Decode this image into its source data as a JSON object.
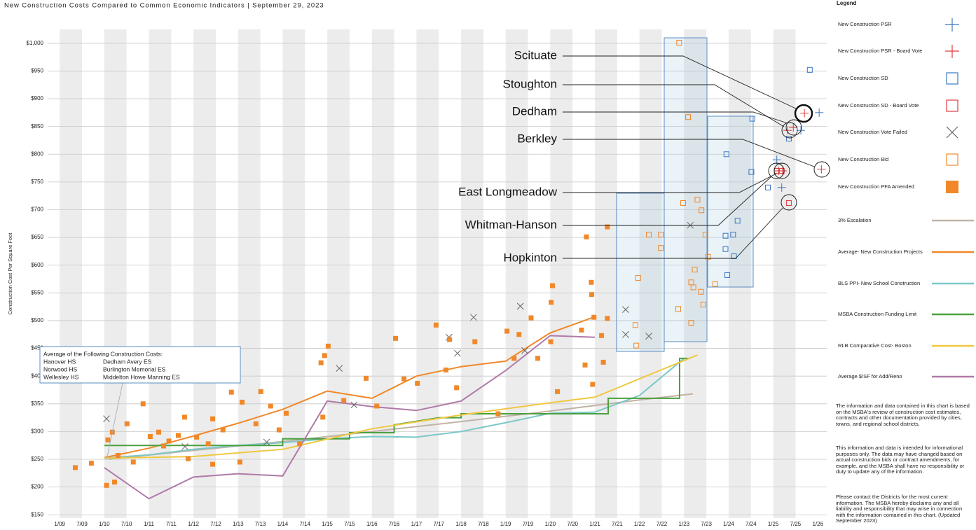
{
  "chart_data": {
    "type": "scatter",
    "title": "New Construction Costs Compared to Common Economic Indicators | September 29, 2023",
    "y_label": "Construction Cost Per Square Foot",
    "legend_title": "Legend",
    "grid": true,
    "xlim": [
      2008.73,
      2026.2
    ],
    "ylim": [
      144,
      1025
    ],
    "xticks": [
      {
        "value": 2009,
        "label": "1/09"
      },
      {
        "value": 2009.5,
        "label": "7/09"
      },
      {
        "value": 2010,
        "label": "1/10"
      },
      {
        "value": 2010.5,
        "label": "7/10"
      },
      {
        "value": 2011,
        "label": "1/11"
      },
      {
        "value": 2011.5,
        "label": "7/11"
      },
      {
        "value": 2012,
        "label": "1/12"
      },
      {
        "value": 2012.5,
        "label": "7/12"
      },
      {
        "value": 2013,
        "label": "1/13"
      },
      {
        "value": 2013.5,
        "label": "7/13"
      },
      {
        "value": 2014,
        "label": "1/14"
      },
      {
        "value": 2014.5,
        "label": "7/14"
      },
      {
        "value": 2015,
        "label": "1/15"
      },
      {
        "value": 2015.5,
        "label": "7/15"
      },
      {
        "value": 2016,
        "label": "1/16"
      },
      {
        "value": 2016.5,
        "label": "7/16"
      },
      {
        "value": 2017,
        "label": "1/17"
      },
      {
        "value": 2017.5,
        "label": "7/17"
      },
      {
        "value": 2018,
        "label": "1/18"
      },
      {
        "value": 2018.5,
        "label": "7/18"
      },
      {
        "value": 2019,
        "label": "1/19"
      },
      {
        "value": 2019.5,
        "label": "7/19"
      },
      {
        "value": 2020,
        "label": "1/20"
      },
      {
        "value": 2020.5,
        "label": "7/20"
      },
      {
        "value": 2021,
        "label": "1/21"
      },
      {
        "value": 2021.5,
        "label": "7/21"
      },
      {
        "value": 2022,
        "label": "1/22"
      },
      {
        "value": 2022.5,
        "label": "7/22"
      },
      {
        "value": 2023,
        "label": "1/23"
      },
      {
        "value": 2023.5,
        "label": "7/23"
      },
      {
        "value": 2024,
        "label": "1/24"
      },
      {
        "value": 2024.5,
        "label": "7/24"
      },
      {
        "value": 2025,
        "label": "1/25"
      },
      {
        "value": 2025.5,
        "label": "7/25"
      },
      {
        "value": 2026,
        "label": "1/26"
      }
    ],
    "yticks": [
      {
        "value": 150,
        "label": "$150"
      },
      {
        "value": 200,
        "label": "$200"
      },
      {
        "value": 250,
        "label": "$250"
      },
      {
        "value": 300,
        "label": "$300"
      },
      {
        "value": 350,
        "label": "$350"
      },
      {
        "value": 400,
        "label": "$400"
      },
      {
        "value": 450,
        "label": "$450"
      },
      {
        "value": 500,
        "label": "$500"
      },
      {
        "value": 550,
        "label": "$550"
      },
      {
        "value": 600,
        "label": "$600"
      },
      {
        "value": 650,
        "label": "$650"
      },
      {
        "value": 700,
        "label": "$700"
      },
      {
        "value": 750,
        "label": "$750"
      },
      {
        "value": 800,
        "label": "$800"
      },
      {
        "value": 850,
        "label": "$850"
      },
      {
        "value": 900,
        "label": "$900"
      },
      {
        "value": 950,
        "label": "$950"
      },
      {
        "value": 1000,
        "label": "$1,000"
      }
    ],
    "series": [
      {
        "name": "New Construction PSR",
        "color": "#3b78c4",
        "marker": "plus",
        "x": [
          2026.03,
          2025.08,
          2025.19,
          2025.62
        ],
        "values": [
          875,
          790,
          740,
          843
        ]
      },
      {
        "name": "New Construction PSR - Board Vote",
        "color": "#e03a3e",
        "marker": "plus",
        "x": [
          2025.7,
          2025.32,
          2025.45,
          2026.08,
          2025.12,
          2025.21
        ],
        "values": [
          874,
          843,
          848,
          773,
          770,
          770
        ]
      },
      {
        "name": "New Construction SD",
        "color": "#3b78c4",
        "marker": "square-open",
        "x": [
          2025.82,
          2025.35,
          2024.53,
          2023.95,
          2024.51,
          2024.2,
          2024.1,
          2023.93,
          2023.93,
          2024.12,
          2023.97,
          2024.88
        ],
        "values": [
          952,
          828,
          864,
          800,
          768,
          680,
          655,
          653,
          629,
          616,
          582,
          740
        ]
      },
      {
        "name": "New Construction SD - Board Vote",
        "color": "#e03a3e",
        "marker": "square-open",
        "x": [
          2025.35,
          2025.08,
          2025.19
        ],
        "values": [
          712,
          770,
          770
        ]
      },
      {
        "name": "New Construction Vote Failed",
        "color": "#666666",
        "marker": "x",
        "x": [
          2010.05,
          2011.81,
          2013.64,
          2015.27,
          2015.6,
          2017.73,
          2018.28,
          2019.33,
          2019.43,
          2021.69,
          2021.69,
          2022.21,
          2023.14,
          2017.92
        ],
        "values": [
          323,
          273,
          281,
          414,
          348,
          470,
          506,
          526,
          446,
          520,
          475,
          472,
          672,
          441
        ]
      },
      {
        "name": "New Construction Bid",
        "color": "#f0882a",
        "marker": "square-open",
        "x": [
          2022.89,
          2023.09,
          2021.97,
          2021.91,
          2021.93,
          2022.21,
          2022.48,
          2022.48,
          2022.98,
          2023.3,
          2023.39,
          2023.48,
          2023.54,
          2023.24,
          2023.16,
          2023.21,
          2023.38,
          2022.87,
          2023.43,
          2023.16,
          2023.7
        ],
        "values": [
          1001,
          867,
          577,
          492,
          455,
          655,
          655,
          631,
          712,
          718,
          699,
          655,
          615,
          592,
          569,
          560,
          552,
          521,
          529,
          496,
          566
        ]
      },
      {
        "name": "New Construction PFA Amended",
        "color": "#f0882a",
        "marker": "square",
        "x": [
          2009.35,
          2009.71,
          2010.05,
          2010.08,
          2010.18,
          2010.23,
          2010.31,
          2010.51,
          2010.65,
          2010.87,
          2011.03,
          2011.22,
          2011.33,
          2011.45,
          2011.66,
          2011.8,
          2011.88,
          2012.07,
          2012.33,
          2012.43,
          2012.43,
          2012.66,
          2012.85,
          2013.04,
          2013.09,
          2013.4,
          2013.51,
          2013.73,
          2013.92,
          2014.08,
          2014.38,
          2014.86,
          2014.94,
          2015.02,
          2014.9,
          2015.37,
          2015.87,
          2016.11,
          2016.53,
          2016.72,
          2017.02,
          2017.44,
          2017.66,
          2017.74,
          2017.9,
          2018.31,
          2018.83,
          2019.03,
          2019.19,
          2019.3,
          2019.57,
          2019.72,
          2020.05,
          2020.02,
          2020.01,
          2020.16,
          2020.7,
          2020.81,
          2020.78,
          2020.93,
          2020.95,
          2020.98,
          2021.15,
          2021.28,
          2021.28,
          2021.19,
          2020.92
        ],
        "values": [
          235,
          243,
          203,
          285,
          299,
          209,
          257,
          314,
          245,
          350,
          291,
          299,
          274,
          283,
          293,
          326,
          251,
          290,
          278,
          323,
          241,
          303,
          371,
          245,
          353,
          314,
          372,
          346,
          303,
          333,
          278,
          424,
          437,
          454,
          326,
          356,
          396,
          346,
          468,
          395,
          387,
          492,
          411,
          466,
          379,
          462,
          332,
          481,
          432,
          475,
          505,
          432,
          563,
          533,
          462,
          372,
          483,
          651,
          420,
          547,
          385,
          506,
          473,
          504,
          669,
          425,
          569
        ]
      },
      {
        "name": "3% Escalation",
        "color": "#c2b3a6",
        "marker": "line",
        "x": [
          2010.1,
          2012,
          2014,
          2016,
          2018,
          2020,
          2022,
          2023.2
        ],
        "values": [
          250,
          266,
          282,
          300,
          318,
          337,
          357,
          368
        ]
      },
      {
        "name": "Average- New Construction Projects",
        "color": "#f0882a",
        "marker": "line",
        "x": [
          2010,
          2011,
          2012,
          2013,
          2014,
          2015,
          2016,
          2017,
          2018,
          2019,
          2020,
          2021
        ],
        "values": [
          253,
          270,
          292,
          315,
          340,
          373,
          360,
          400,
          417,
          427,
          478,
          507
        ]
      },
      {
        "name": "BLS PPI- New School Construction",
        "color": "#7cc8c8",
        "marker": "line",
        "x": [
          2010,
          2011,
          2012,
          2013,
          2014,
          2015,
          2016,
          2017,
          2018,
          2019,
          2020,
          2021,
          2022,
          2023
        ],
        "values": [
          252,
          258,
          268,
          275,
          280,
          287,
          291,
          290,
          300,
          316,
          333,
          335,
          365,
          432
        ]
      },
      {
        "name": "MSBA Construction Funding Limit",
        "color": "#4aa03f",
        "marker": "line",
        "x": [
          2010,
          2014,
          2014,
          2015.5,
          2015.5,
          2016.5,
          2016.5,
          2017.5,
          2018,
          2018,
          2021.3,
          2021.3,
          2022.9,
          2022.9,
          2023.1
        ],
        "values": [
          275,
          275,
          287,
          287,
          298,
          298,
          312,
          325,
          325,
          332,
          332,
          360,
          360,
          432,
          432
        ]
      },
      {
        "name": "RLB Comparative Cost- Boston",
        "color": "#f0c840",
        "marker": "line",
        "x": [
          2010,
          2012,
          2014,
          2016,
          2018,
          2020,
          2021,
          2023.3
        ],
        "values": [
          252,
          255,
          268,
          305,
          330,
          352,
          362,
          438
        ]
      },
      {
        "name": "Average $/SF for Add/Reno",
        "color": "#b07aa8",
        "marker": "line",
        "x": [
          2010,
          2011,
          2012,
          2013,
          2014,
          2015,
          2016,
          2017,
          2018,
          2019,
          2020,
          2021
        ],
        "values": [
          235,
          179,
          218,
          224,
          220,
          355,
          345,
          338,
          355,
          410,
          473,
          470
        ]
      }
    ],
    "annotations": [
      "Scituate",
      "Stoughton",
      "Dedham",
      "Berkley",
      "East Longmeadow",
      "Whitman-Hanson",
      "Hopkinton"
    ],
    "inset": {
      "title": "Average of the Following Construction Costs:",
      "items": [
        "Hanover HS",
        "Dedham Avery ES",
        "Norwood HS",
        "Burlington Memorial ES",
        "Wellesley HS",
        "Middelton Howe Manning ES"
      ]
    },
    "notes": [
      "The information and data contained in this chart is based on the MSBA's review of construction cost estimates, contracts and other documentation provided by cities, towns, and regional school districts.",
      "This information and data is intended for informational purposes only. The data may have changed based on actual construction bids or contract amendments, for example, and the MSBA shall have no responsibility or duty to update any of the information.",
      "Please contact the Districts for the most current information. The MSBA hereby disclaims any and all liability and responsibility that may arise in connection with the information contained in this chart. (Updated September 2023)"
    ]
  }
}
